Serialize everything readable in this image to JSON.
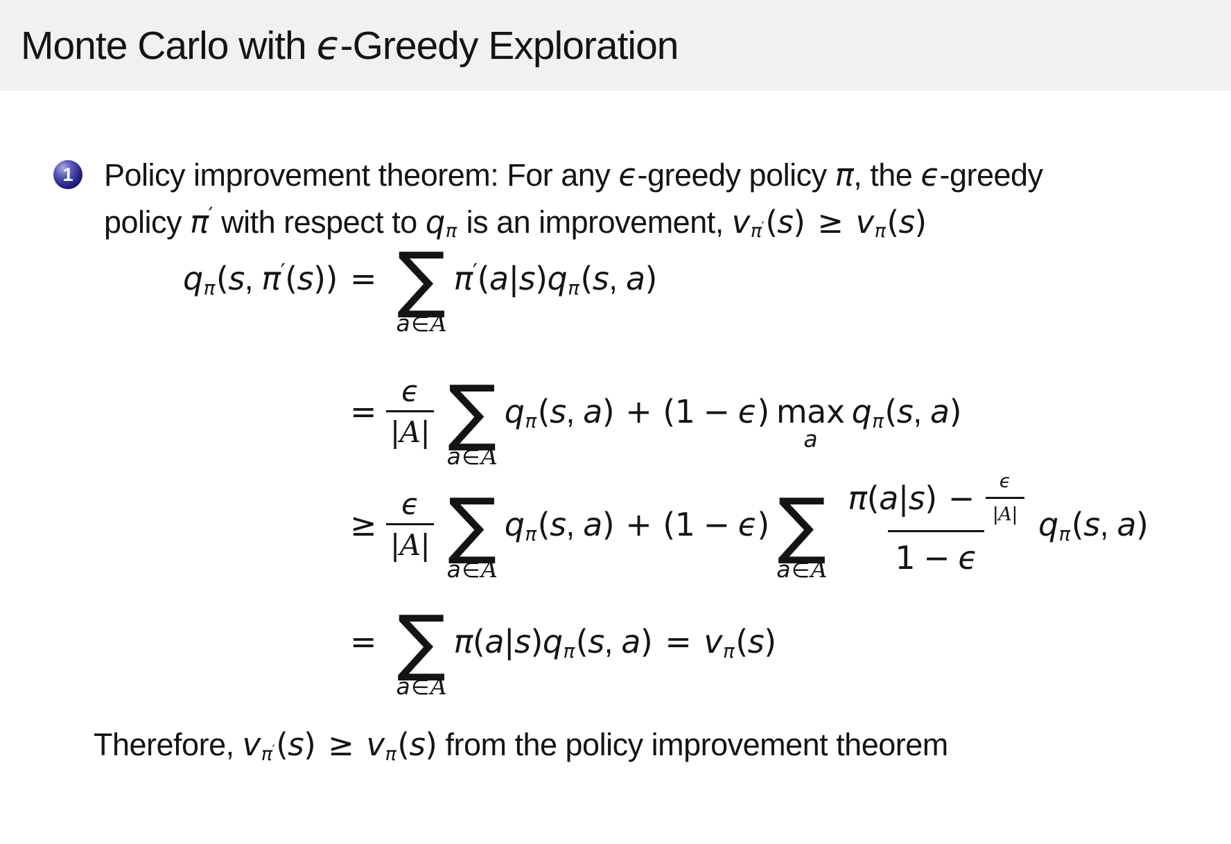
{
  "title": {
    "pre": "Monte Carlo with ",
    "eps": "ϵ",
    "post": "-Greedy Exploration"
  },
  "bullet": {
    "num": "1",
    "t1": "Policy improvement theorem: For any ",
    "t2": "-greedy policy ",
    "t3": ", the ",
    "t4": "-greedy",
    "t5": "policy ",
    "t6": " with respect to ",
    "t7": " is an improvement, "
  },
  "therefore": {
    "t1": "Therefore, ",
    "t2": " from the policy improvement theorem"
  },
  "sym": {
    "q": "q",
    "pi": "π",
    "s": "s",
    "a": "a",
    "v": "v",
    "eps": "ϵ",
    "sum": "∑",
    "in": "∈",
    "calA": "A",
    "eq": "=",
    "ge": "≥",
    "plus": "+",
    "minus": "−",
    "one": "1",
    "prime": "′",
    "max": "max",
    "lp": "(",
    "rp": ")",
    "bar": "|",
    "comma": ", "
  },
  "colors": {
    "banner": "#f1f1f1",
    "text": "#141414",
    "ball": "#23238a"
  }
}
